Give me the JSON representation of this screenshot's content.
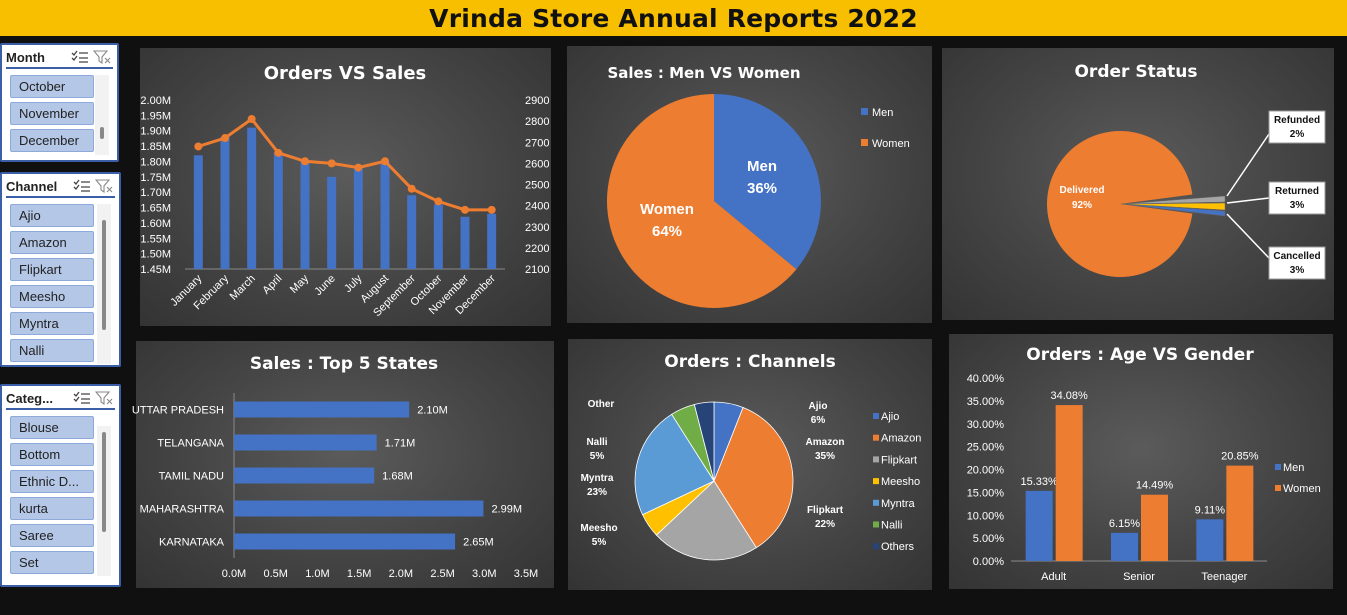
{
  "header": {
    "title": "Vrinda Store Annual Reports 2022"
  },
  "slicers": {
    "month": {
      "title": "Month",
      "items": [
        "October",
        "November",
        "December"
      ]
    },
    "channel": {
      "title": "Channel",
      "items": [
        "Ajio",
        "Amazon",
        "Flipkart",
        "Meesho",
        "Myntra",
        "Nalli"
      ]
    },
    "category": {
      "title": "Categ...",
      "items": [
        "Blouse",
        "Bottom",
        "Ethnic D...",
        "kurta",
        "Saree",
        "Set"
      ]
    }
  },
  "colors": {
    "blue": "#4472c4",
    "orange": "#ed7d31",
    "gray": "#a5a5a5",
    "yellow": "#ffc000",
    "lightblue": "#5b9bd5",
    "green": "#70ad47",
    "navy": "#264478",
    "banner": "#f7bf00"
  },
  "chart_data": [
    {
      "id": "orders_vs_sales",
      "type": "bar",
      "title": "Orders VS Sales",
      "categories": [
        "January",
        "February",
        "March",
        "April",
        "May",
        "June",
        "July",
        "August",
        "September",
        "October",
        "November",
        "December"
      ],
      "series": [
        {
          "type": "bar",
          "axis": "left",
          "values": [
            1.82,
            1.88,
            1.91,
            1.83,
            1.8,
            1.75,
            1.78,
            1.8,
            1.69,
            1.66,
            1.62,
            1.63
          ]
        },
        {
          "type": "line",
          "axis": "right",
          "values": [
            2680,
            2720,
            2810,
            2650,
            2610,
            2600,
            2580,
            2610,
            2480,
            2420,
            2380,
            2380
          ]
        }
      ],
      "y_left": {
        "ticks": [
          "2.00M",
          "1.95M",
          "1.90M",
          "1.85M",
          "1.80M",
          "1.75M",
          "1.70M",
          "1.65M",
          "1.60M",
          "1.55M",
          "1.50M",
          "1.45M"
        ],
        "min": 1.45,
        "max": 2.0
      },
      "y_right": {
        "ticks": [
          "2900",
          "2800",
          "2700",
          "2600",
          "2500",
          "2400",
          "2300",
          "2200",
          "2100"
        ],
        "min": 2100,
        "max": 2900
      }
    },
    {
      "id": "sales_men_women",
      "type": "pie",
      "title": "Sales : Men VS Women",
      "labels": [
        "Men",
        "Women"
      ],
      "values": [
        36,
        64
      ],
      "data_labels": [
        "36%",
        "64%"
      ],
      "legend": [
        "Men",
        "Women"
      ],
      "legend_position": "right"
    },
    {
      "id": "order_status",
      "type": "pie",
      "title": "Order Status",
      "labels": [
        "Delivered",
        "Refunded",
        "Returned",
        "Cancelled"
      ],
      "values": [
        92,
        2,
        3,
        3
      ],
      "data_labels": [
        "92%",
        "2%",
        "3%",
        "3%"
      ]
    },
    {
      "id": "sales_top5_states",
      "type": "bar",
      "orientation": "horizontal",
      "title": "Sales : Top 5 States",
      "categories": [
        "UTTAR PRADESH",
        "TELANGANA",
        "TAMIL NADU",
        "MAHARASHTRA",
        "KARNATAKA"
      ],
      "values": [
        2.1,
        1.71,
        1.68,
        2.99,
        2.65
      ],
      "data_labels": [
        "2.10M",
        "1.71M",
        "1.68M",
        "2.99M",
        "2.65M"
      ],
      "x_ticks": [
        "0.0M",
        "0.5M",
        "1.0M",
        "1.5M",
        "2.0M",
        "2.5M",
        "3.0M",
        "3.5M"
      ],
      "xlim": [
        0,
        3.5
      ]
    },
    {
      "id": "orders_channels",
      "type": "pie",
      "title": "Orders : Channels",
      "labels": [
        "Ajio",
        "Amazon",
        "Flipkart",
        "Meesho",
        "Myntra",
        "Nalli",
        "Other"
      ],
      "values": [
        6,
        35,
        22,
        5,
        23,
        5,
        4
      ],
      "data_labels": [
        "6%",
        "35%",
        "22%",
        "5%",
        "23%",
        "5%",
        ""
      ],
      "legend": [
        "Ajio",
        "Amazon",
        "Flipkart",
        "Meesho",
        "Myntra",
        "Nalli",
        "Others"
      ],
      "legend_position": "right"
    },
    {
      "id": "orders_age_gender",
      "type": "bar",
      "title": "Orders : Age VS Gender",
      "categories": [
        "Adult",
        "Senior",
        "Teenager"
      ],
      "series": [
        {
          "name": "Men",
          "values": [
            15.33,
            6.15,
            9.11
          ],
          "labels": [
            "15.33%",
            "6.15%",
            "9.11%"
          ]
        },
        {
          "name": "Women",
          "values": [
            34.08,
            14.49,
            20.85
          ],
          "labels": [
            "34.08%",
            "14.49%",
            "20.85%"
          ]
        }
      ],
      "y_ticks": [
        "40.00%",
        "35.00%",
        "30.00%",
        "25.00%",
        "20.00%",
        "15.00%",
        "10.00%",
        "5.00%",
        "0.00%"
      ],
      "ylim": [
        0,
        40
      ],
      "legend_position": "right"
    }
  ]
}
